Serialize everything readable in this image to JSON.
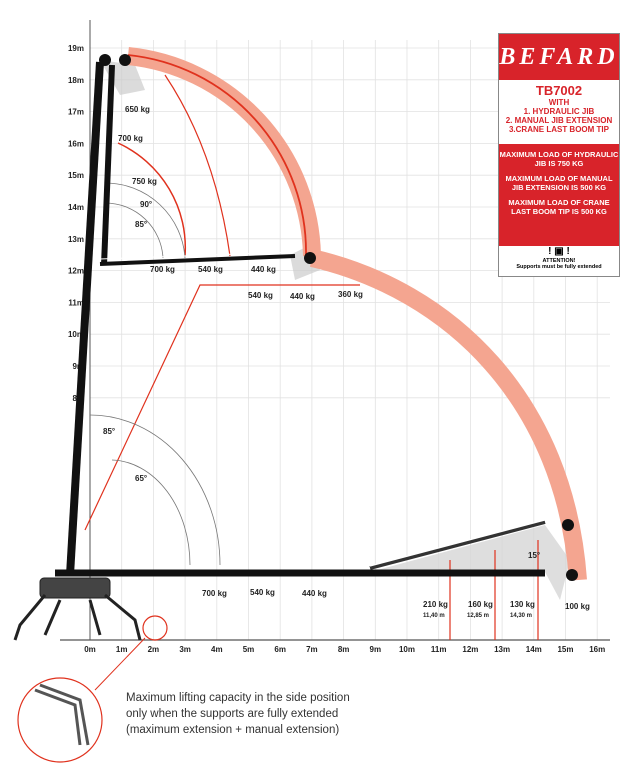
{
  "y_axis_ticks": [
    "19m",
    "18m",
    "17m",
    "16m",
    "15m",
    "14m",
    "13m",
    "12m",
    "11m",
    "10m",
    "9m",
    "8m"
  ],
  "x_axis_ticks": [
    "0m",
    "1m",
    "2m",
    "3m",
    "4m",
    "5m",
    "6m",
    "7m",
    "8m",
    "9m",
    "10m",
    "11m",
    "12m",
    "13m",
    "14m",
    "15m",
    "16m"
  ],
  "colors": {
    "load_band": "#f4a590",
    "load_line": "#e0321e",
    "brand_red": "#d8232a",
    "boom": "#111111",
    "grid": "#e2e2e2"
  },
  "upper_labels": {
    "tip_top": "650 kg",
    "jib_700": "700 kg",
    "jib_750": "750 kg",
    "angle_90": "90°",
    "angle_85": "85°",
    "h_700": "700 kg",
    "h_540": "540 kg",
    "h_440": "440 kg",
    "ext_540": "540 kg",
    "ext_440": "440 kg",
    "ext_360": "360 kg"
  },
  "lower_labels": {
    "angle_85": "85°",
    "angle_65": "65°",
    "angle_15": "15°",
    "h_700": "700 kg",
    "h_540": "540 kg",
    "h_440": "440 kg",
    "load_210": "210 kg",
    "dist_1140": "11,40 m",
    "load_160": "160 kg",
    "dist_1285": "12,85 m",
    "load_130": "130 kg",
    "dist_1430": "14,30 m",
    "load_100": "100 kg"
  },
  "infobox": {
    "brand": "BEFARD",
    "model": "TB7002",
    "with": "WITH",
    "items": [
      "1. HYDRAULIC JIB",
      "2. MANUAL JIB EXTENSION",
      "3.CRANE LAST BOOM TIP"
    ],
    "max_loads": [
      "MAXIMUM LOAD OF HYDRAULIC JIB IS 750 KG",
      "MAXIMUM LOAD OF MANUAL JIB EXTENSION IS 500 KG",
      "MAXIMUM LOAD OF CRANE LAST BOOM TIP IS 500 KG"
    ],
    "attention": "ATTENTION!",
    "attention_note": "Supports must be fully extended"
  },
  "caption": [
    "Maximum lifting capacity in the side position",
    "only when the supports are fully extended",
    "(maximum extension + manual extension)"
  ]
}
